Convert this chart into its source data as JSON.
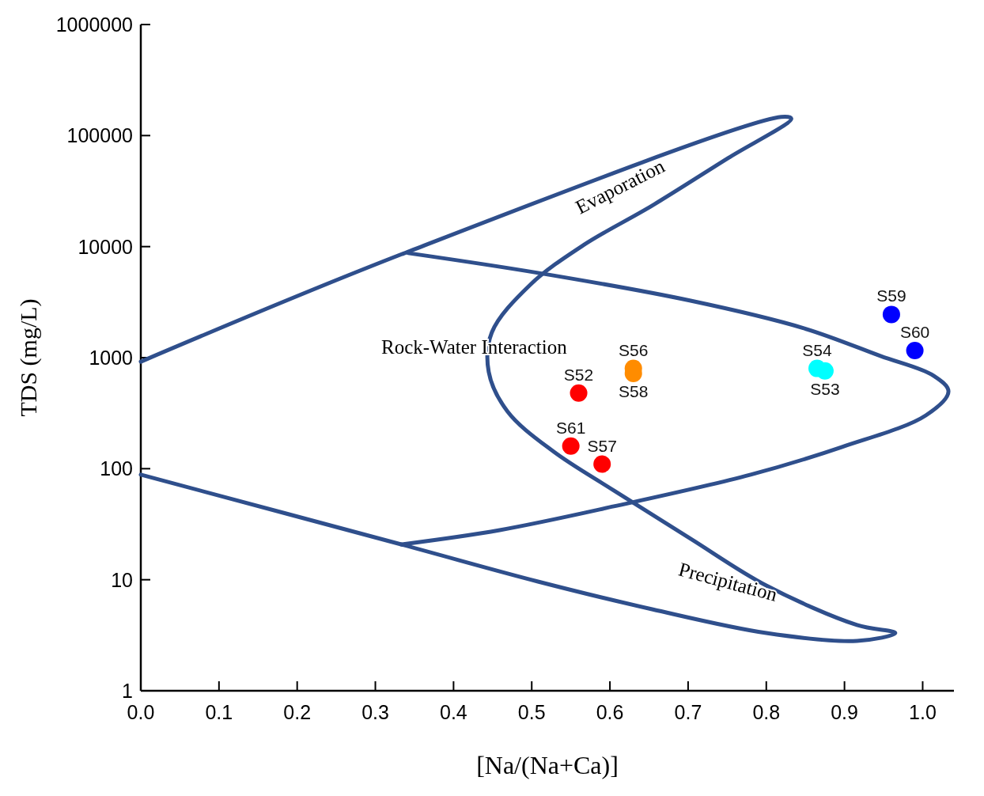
{
  "chart_data": {
    "type": "scatter",
    "xlabel": "[Na/(Na+Ca)]",
    "ylabel": "TDS (mg/L)",
    "log": "y",
    "xlim": [
      0,
      1.04
    ],
    "xticks": [
      {
        "value": 0,
        "label": "0.0"
      },
      0.1,
      0.2,
      0.3,
      0.4,
      0.5,
      0.6,
      0.7,
      0.8,
      0.9,
      {
        "value": 1,
        "label": "1.0"
      }
    ],
    "ylim": [
      1,
      1000000
    ],
    "yticks": [
      1,
      10,
      100,
      1000,
      10000,
      100000,
      1000000
    ],
    "grid": false,
    "marker": "circle",
    "annotations": [
      "Evaporation",
      "Rock-Water Interaction",
      "Precipitation"
    ],
    "series": [
      {
        "type": "line",
        "color": "#2f4f8c",
        "marker": "none",
        "x": [
          0,
          0.342,
          0.819,
          0.832,
          0.751,
          0.654,
          0.566,
          0.498,
          0.449,
          0.445,
          0.469,
          0.527,
          0.605,
          0.702,
          0.8,
          0.916,
          0.965,
          0.916,
          0.8,
          0.654,
          0.508,
          0.333,
          0
        ],
        "values": [
          920,
          9000,
          147000,
          142000,
          62600,
          23400,
          10300,
          4530,
          1690,
          745,
          328,
          144,
          63.6,
          23.7,
          8.87,
          3.91,
          3.31,
          2.81,
          3.31,
          5.42,
          9.63,
          20.8,
          88.3
        ]
      },
      {
        "type": "line",
        "color": "#2f4f8c",
        "marker": "none",
        "x": [
          0.342,
          0.508,
          0.702,
          0.848,
          0.946,
          1.014,
          1.033,
          1.004,
          0.897,
          0.78,
          0.605,
          0.459,
          0.333
        ],
        "values": [
          8740,
          5800,
          3270,
          1840,
          1035,
          687,
          495,
          302,
          157,
          88.3,
          45.8,
          28,
          20.8
        ]
      },
      {
        "name": "S52",
        "color": "#ff0000",
        "x": [
          0.56
        ],
        "values": [
          480
        ]
      },
      {
        "name": "S61",
        "color": "#ff0000",
        "x": [
          0.55
        ],
        "values": [
          160
        ]
      },
      {
        "name": "S57",
        "color": "#ff0000",
        "x": [
          0.59
        ],
        "values": [
          110
        ]
      },
      {
        "name": "S56",
        "color": "#ff8c00",
        "x": [
          0.63
        ],
        "values": [
          800
        ]
      },
      {
        "name": "S58",
        "color": "#ff8c00",
        "x": [
          0.63
        ],
        "values": [
          720
        ]
      },
      {
        "name": "S54",
        "color": "#00ffff",
        "x": [
          0.865
        ],
        "values": [
          800
        ]
      },
      {
        "name": "S53",
        "color": "#00ffff",
        "x": [
          0.875
        ],
        "values": [
          760
        ]
      },
      {
        "name": "S59",
        "color": "#0000ff",
        "x": [
          0.96
        ],
        "values": [
          2450
        ]
      },
      {
        "name": "S60",
        "color": "#0000ff",
        "x": [
          0.99
        ],
        "values": [
          1160
        ]
      }
    ]
  }
}
